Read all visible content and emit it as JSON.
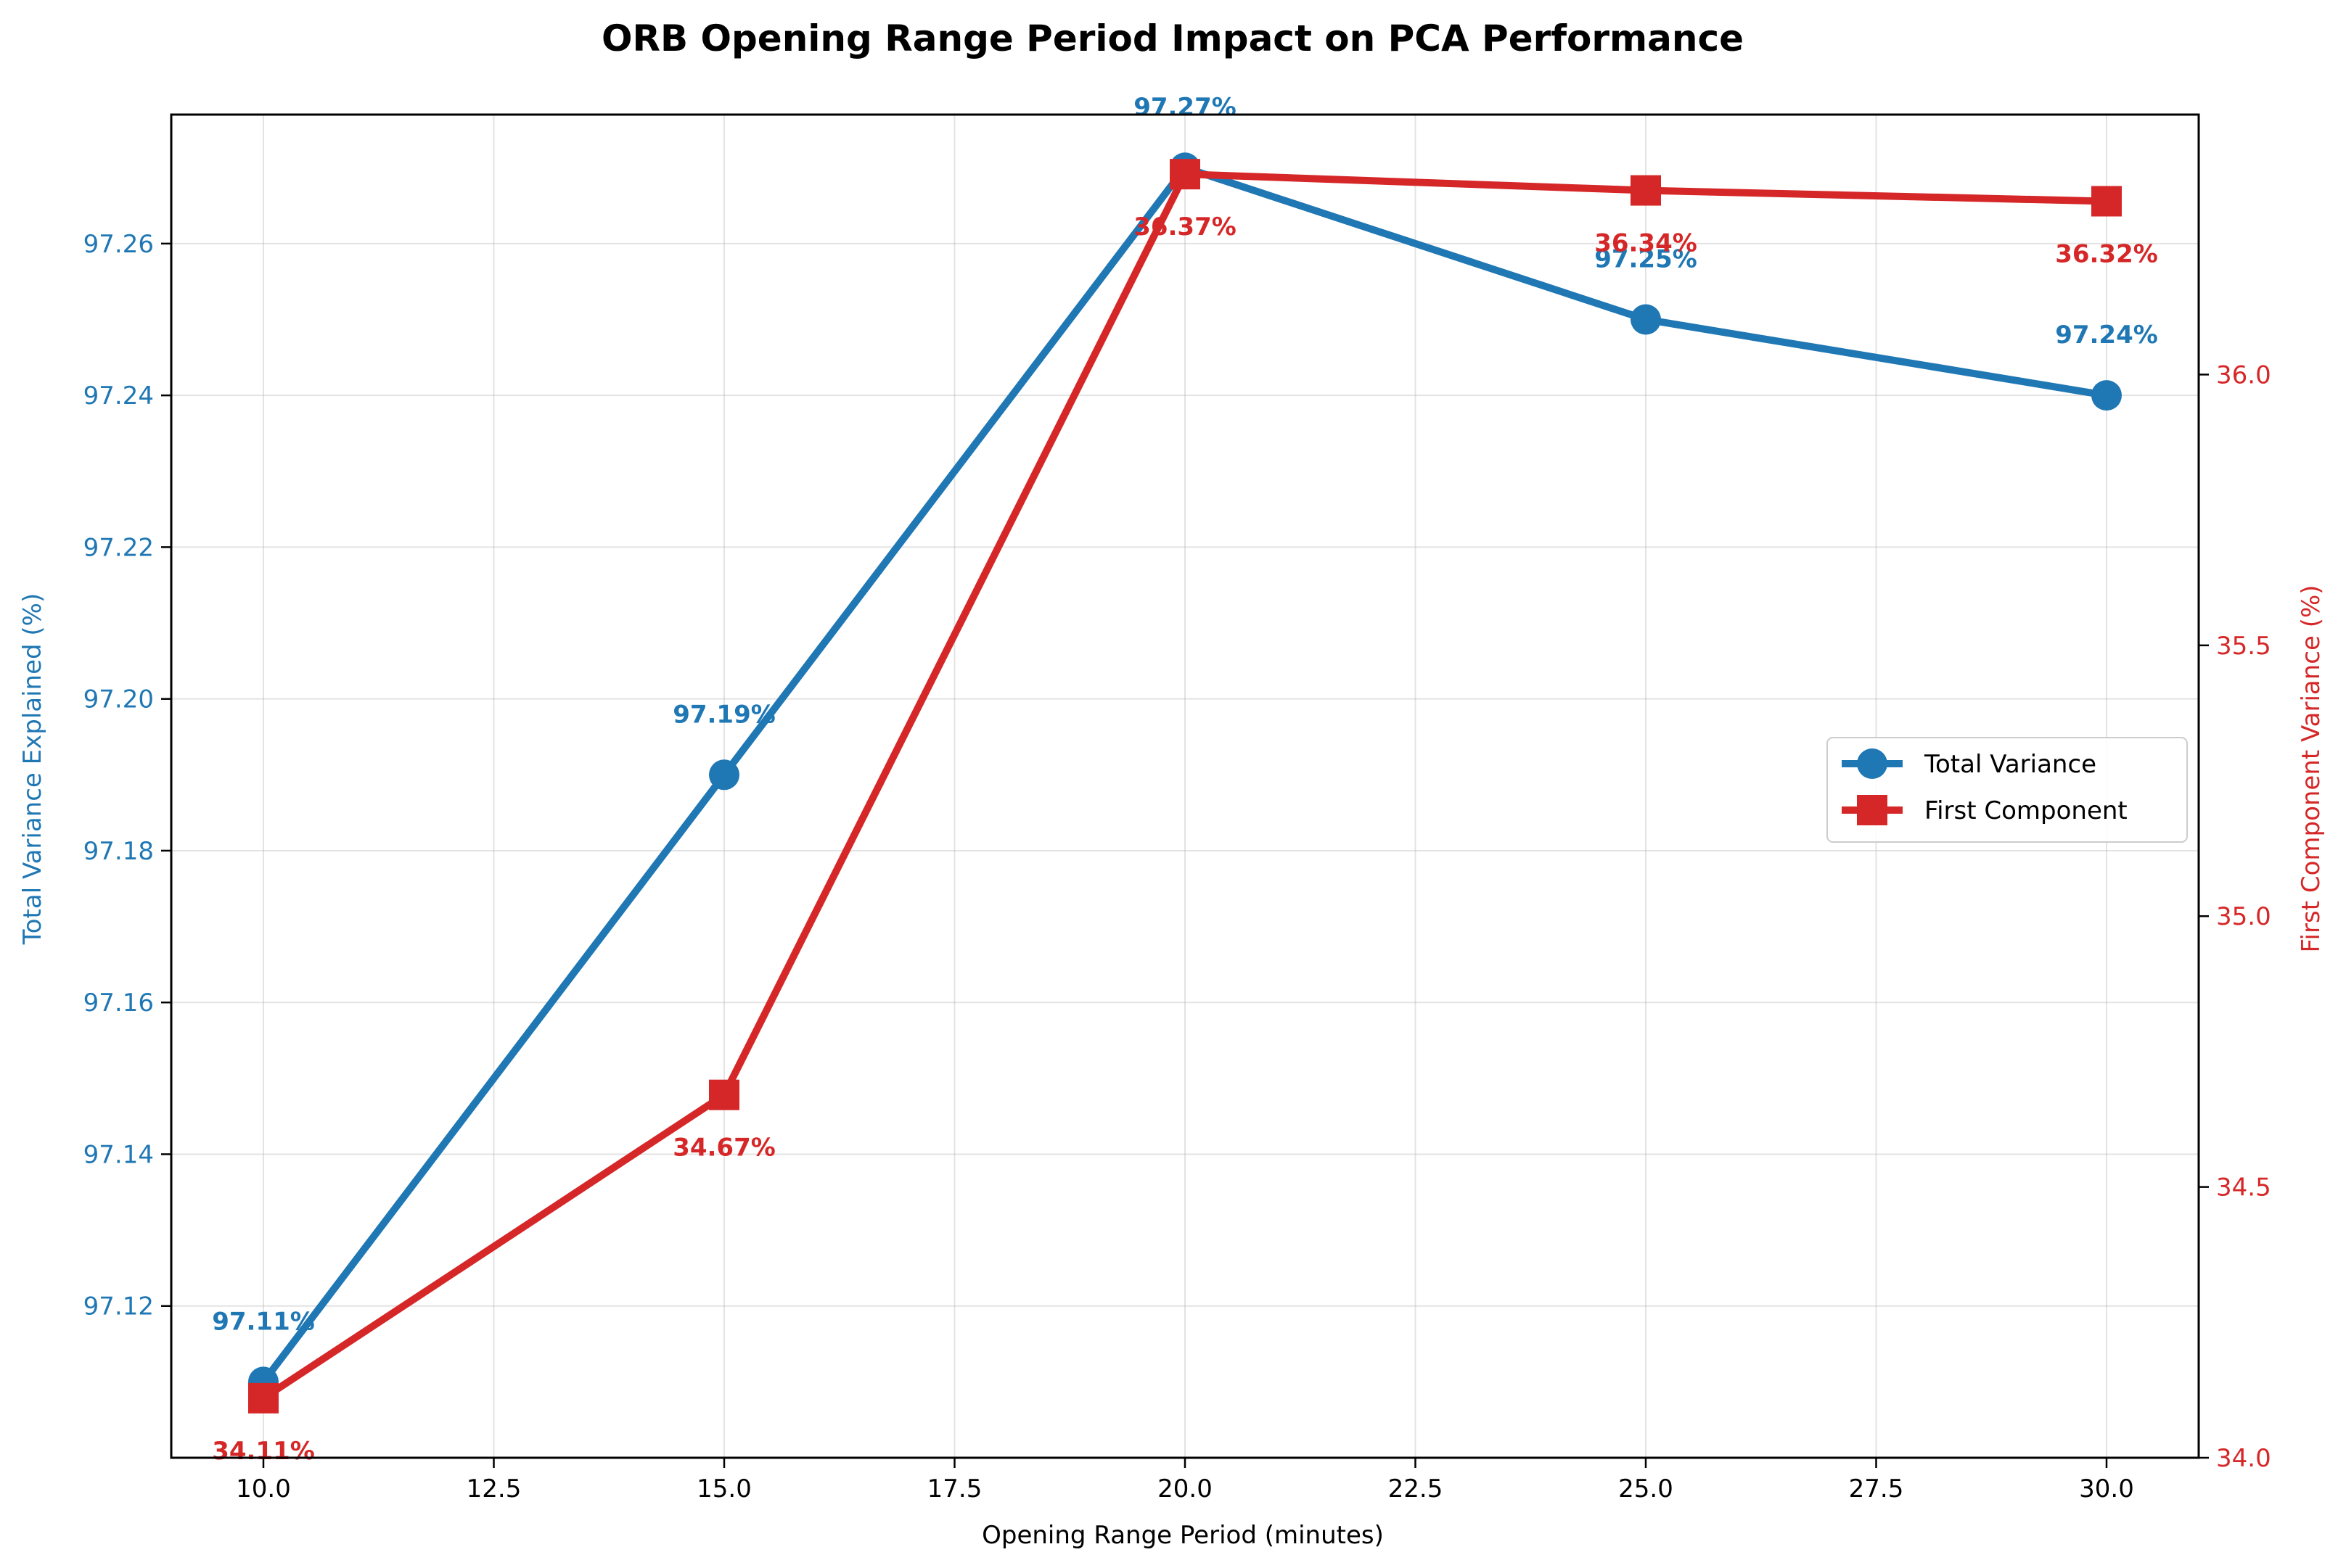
{
  "chart_data": {
    "type": "line",
    "title": "ORB Opening Range Period Impact on PCA Performance",
    "xlabel": "Opening Range Period (minutes)",
    "ylabel": "Total Variance Explained (%)",
    "y2label": "First Component Variance (%)",
    "x": [
      10,
      15,
      20,
      25,
      30
    ],
    "xlim": [
      9,
      31
    ],
    "ylim": [
      97.1,
      97.277
    ],
    "y2lim": [
      34.0,
      36.48
    ],
    "xticks": [
      "10.0",
      "12.5",
      "15.0",
      "17.5",
      "20.0",
      "22.5",
      "25.0",
      "27.5",
      "30.0"
    ],
    "yticks": [
      "97.12",
      "97.14",
      "97.16",
      "97.18",
      "97.20",
      "97.22",
      "97.24",
      "97.26"
    ],
    "y2ticks": [
      "34.0",
      "34.5",
      "35.0",
      "35.5",
      "36.0"
    ],
    "grid": true,
    "legend_position": "center-right",
    "series": [
      {
        "name": "Total Variance",
        "axis": "left",
        "color": "#1f77b4",
        "marker": "circle",
        "values": [
          97.11,
          97.19,
          97.27,
          97.25,
          97.24
        ],
        "labels": [
          "97.11%",
          "97.19%",
          "97.27%",
          "97.25%",
          "97.24%"
        ]
      },
      {
        "name": "First Component",
        "axis": "right",
        "color": "#d62728",
        "marker": "square",
        "values": [
          34.11,
          34.67,
          36.37,
          36.34,
          36.32
        ],
        "labels": [
          "34.11%",
          "34.67%",
          "36.37%",
          "36.34%",
          "36.32%"
        ]
      }
    ]
  }
}
